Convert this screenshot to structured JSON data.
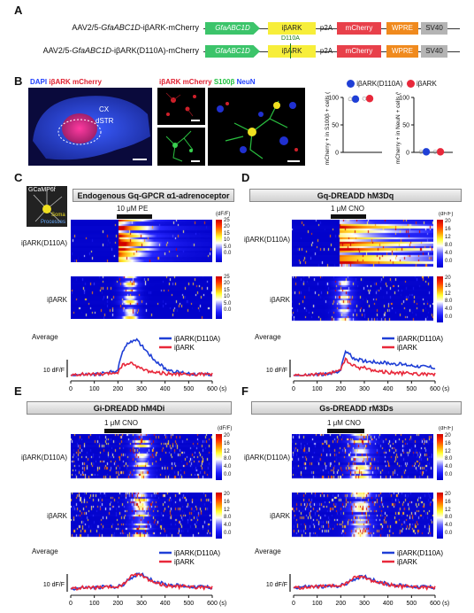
{
  "panels": {
    "A": "A",
    "B": "B",
    "C": "C",
    "D": "D",
    "E": "E",
    "F": "F"
  },
  "panelA": {
    "constructs": [
      {
        "name_prefix": "AAV2/5-",
        "name_italic": "GfaABC1D",
        "name_suffix": "-iβARK-mCherry"
      },
      {
        "name_prefix": "AAV2/5-",
        "name_italic": "GfaABC1D",
        "name_suffix": "-iβARK(D110A)-mCherry"
      }
    ],
    "elements": [
      "GfaABC1D",
      "iβARK",
      "p2A",
      "mCherry",
      "WPRE",
      "SV40"
    ],
    "mutation": "D110A"
  },
  "panelB": {
    "title_parts": [
      "DAPI",
      "iβARK",
      "mCherry"
    ],
    "region_cx": "CX",
    "region_dstr": "dSTR",
    "merge_title_parts": [
      "iβARK",
      "mCherry",
      "S100β",
      "NeuN"
    ],
    "legend": [
      "iβARK(D110A)",
      "iβARK"
    ],
    "plot1_ylabel": "mCherry + in S100β + cells (%)",
    "plot1_yticks": [
      "100",
      "50",
      "0"
    ],
    "plot2_ylabel": "mCherry + in NeuN + cells (%)",
    "plot2_yticks": [
      "100",
      "50",
      "0"
    ],
    "colors": {
      "d110a": "#1f3fd6",
      "ibark": "#e8283a"
    }
  },
  "panelC": {
    "title": "Endogenous Gq-GPCR α1-adrenoceptor",
    "inset_label": "GCaMP6f",
    "inset_soma": "Soma",
    "inset_processes": "Processes",
    "stim": "10 μM PE",
    "row1": "iβARK(D110A)",
    "row2": "iβARK",
    "cbar_unit": "(dF/F)",
    "cbar_ticks": [
      "25",
      "20",
      "15",
      "10",
      "5.0",
      "0.0"
    ],
    "average_label": "Average",
    "scale_label": "10 dF/F",
    "xticks": [
      "0",
      "100",
      "200",
      "300",
      "400",
      "500",
      "600"
    ],
    "xunit": "(s)"
  },
  "panelD": {
    "title": "Gq-DREADD hM3Dq",
    "stim": "1 μM CNO",
    "row1": "iβARK(D110A)",
    "row2": "iβARK",
    "cbar_unit": "(dF/F)",
    "cbar_ticks": [
      "20",
      "16",
      "12",
      "8.0",
      "4.0",
      "0.0"
    ],
    "average_label": "Average",
    "scale_label": "10 dF/F",
    "xticks": [
      "0",
      "100",
      "200",
      "300",
      "400",
      "500",
      "600"
    ],
    "xunit": "(s)"
  },
  "panelE": {
    "title": "Gi-DREADD hM4Di",
    "stim": "1 μM CNO",
    "row1": "iβARK(D110A)",
    "row2": "iβARK",
    "cbar_unit": "(dF/F)",
    "cbar_ticks": [
      "20",
      "16",
      "12",
      "8.0",
      "4.0",
      "0.0"
    ],
    "average_label": "Average",
    "scale_label": "10 dF/F",
    "xticks": [
      "0",
      "100",
      "200",
      "300",
      "400",
      "500",
      "600"
    ],
    "xunit": "(s)"
  },
  "panelF": {
    "title": "Gs-DREADD rM3Ds",
    "stim": "1 μM CNO",
    "row1": "iβARK(D110A)",
    "row2": "iβARK",
    "cbar_unit": "(dF/F)",
    "cbar_ticks": [
      "20",
      "16",
      "12",
      "8.0",
      "4.0",
      "0.0"
    ],
    "average_label": "Average",
    "scale_label": "10 dF/F",
    "xticks": [
      "0",
      "100",
      "200",
      "300",
      "400",
      "500",
      "600"
    ],
    "xunit": "(s)"
  },
  "legend_avg": [
    "iβARK(D110A)",
    "iβARK"
  ],
  "chart_data": [
    {
      "type": "line",
      "panel": "C",
      "x": [
        0,
        50,
        100,
        150,
        200,
        220,
        250,
        275,
        300,
        350,
        400,
        450,
        500,
        550,
        600
      ],
      "series": [
        {
          "name": "iβARK(D110A)",
          "values": [
            0,
            1,
            1,
            2,
            5,
            22,
            30,
            32,
            27,
            15,
            6,
            3,
            2,
            1,
            1
          ]
        },
        {
          "name": "iβARK",
          "values": [
            0,
            1,
            1,
            1,
            3,
            9,
            11,
            9,
            6,
            3,
            2,
            1,
            1,
            1,
            1
          ]
        }
      ],
      "xlim": [
        0,
        600
      ]
    },
    {
      "type": "line",
      "panel": "D",
      "x": [
        0,
        50,
        100,
        150,
        200,
        220,
        250,
        275,
        300,
        350,
        400,
        450,
        500,
        550,
        600
      ],
      "series": [
        {
          "name": "iβARK(D110A)",
          "values": [
            0,
            0,
            1,
            1,
            5,
            22,
            16,
            14,
            13,
            12,
            11,
            10,
            9,
            8,
            7
          ]
        },
        {
          "name": "iβARK",
          "values": [
            0,
            0,
            1,
            1,
            6,
            14,
            9,
            7,
            7,
            4,
            3,
            2,
            2,
            1,
            1
          ]
        }
      ],
      "xlim": [
        0,
        600
      ]
    },
    {
      "type": "line",
      "panel": "E",
      "x": [
        0,
        50,
        100,
        150,
        200,
        220,
        250,
        275,
        300,
        350,
        400,
        450,
        500,
        550,
        600
      ],
      "series": [
        {
          "name": "iβARK(D110A)",
          "values": [
            1,
            2,
            2,
            3,
            3,
            4,
            10,
            13,
            14,
            8,
            5,
            4,
            3,
            3,
            2
          ]
        },
        {
          "name": "iβARK",
          "values": [
            1,
            2,
            2,
            2,
            3,
            4,
            11,
            14,
            13,
            7,
            4,
            3,
            3,
            2,
            2
          ]
        }
      ],
      "xlim": [
        0,
        600
      ]
    },
    {
      "type": "line",
      "panel": "F",
      "x": [
        0,
        50,
        100,
        150,
        200,
        220,
        250,
        275,
        300,
        350,
        400,
        450,
        500,
        550,
        600
      ],
      "series": [
        {
          "name": "iβARK(D110A)",
          "values": [
            2,
            3,
            3,
            3,
            4,
            5,
            9,
            11,
            12,
            8,
            5,
            4,
            3,
            3,
            2
          ]
        },
        {
          "name": "iβARK",
          "values": [
            2,
            2,
            3,
            3,
            4,
            5,
            10,
            12,
            11,
            7,
            5,
            3,
            3,
            2,
            2
          ]
        }
      ],
      "xlim": [
        0,
        600
      ]
    },
    {
      "type": "scatter",
      "panel": "B-left",
      "categories": [
        "iβARK(D110A)",
        "iβARK"
      ],
      "values": [
        97,
        98
      ],
      "ylim": [
        0,
        100
      ]
    },
    {
      "type": "scatter",
      "panel": "B-right",
      "categories": [
        "iβARK(D110A)",
        "iβARK"
      ],
      "values": [
        1,
        1
      ],
      "ylim": [
        0,
        100
      ]
    }
  ]
}
